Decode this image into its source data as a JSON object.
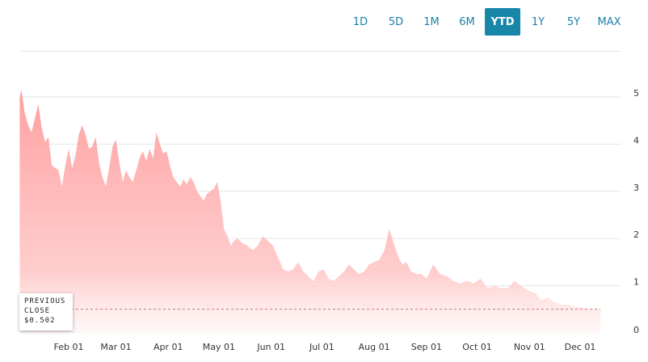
{
  "ranges": {
    "items": [
      {
        "label": "1D",
        "active": false
      },
      {
        "label": "5D",
        "active": false
      },
      {
        "label": "1M",
        "active": false
      },
      {
        "label": "6M",
        "active": false
      },
      {
        "label": "YTD",
        "active": true
      },
      {
        "label": "1Y",
        "active": false
      },
      {
        "label": "5Y",
        "active": false
      },
      {
        "label": "MAX",
        "active": false
      }
    ],
    "active_color": "#1786a9",
    "text_color": "#1a7fa8"
  },
  "previous_close": {
    "line1": "PREVIOUS",
    "line2": "CLOSE",
    "value_label": "$0.502",
    "value": 0.502
  },
  "chart_data": {
    "type": "area",
    "title": "",
    "xlabel": "",
    "ylabel": "",
    "ylim": [
      0,
      5.3
    ],
    "yticks": [
      0,
      1,
      2,
      3,
      4,
      5
    ],
    "xtick_labels": [
      "Feb 01",
      "Mar 01",
      "Apr 01",
      "May 01",
      "Jun 01",
      "Jul 01",
      "Aug 01",
      "Sep 01",
      "Oct 01",
      "Nov 01",
      "Dec 01"
    ],
    "xtick_dates": [
      "2022-02-01",
      "2022-03-01",
      "2022-04-01",
      "2022-05-01",
      "2022-06-01",
      "2022-07-01",
      "2022-08-01",
      "2022-09-01",
      "2022-10-01",
      "2022-11-01",
      "2022-12-01"
    ],
    "x_range": [
      "2022-01-03",
      "2022-12-13"
    ],
    "fill_color": "#ff9b9b",
    "grid": true,
    "series": [
      {
        "x": [
          "2022-01-03",
          "2022-01-04",
          "2022-01-06",
          "2022-01-08",
          "2022-01-10",
          "2022-01-12",
          "2022-01-14",
          "2022-01-16",
          "2022-01-18",
          "2022-01-20",
          "2022-01-22",
          "2022-01-24",
          "2022-01-26",
          "2022-01-28",
          "2022-01-30",
          "2022-02-01",
          "2022-02-03",
          "2022-02-05",
          "2022-02-07",
          "2022-02-09",
          "2022-02-11",
          "2022-02-13",
          "2022-02-15",
          "2022-02-17",
          "2022-02-19",
          "2022-02-21",
          "2022-02-23",
          "2022-02-25",
          "2022-02-27",
          "2022-03-01",
          "2022-03-03",
          "2022-03-05",
          "2022-03-07",
          "2022-03-09",
          "2022-03-11",
          "2022-03-13",
          "2022-03-15",
          "2022-03-17",
          "2022-03-19",
          "2022-03-21",
          "2022-03-23",
          "2022-03-25",
          "2022-03-27",
          "2022-03-29",
          "2022-03-31",
          "2022-04-02",
          "2022-04-04",
          "2022-04-06",
          "2022-04-08",
          "2022-04-10",
          "2022-04-12",
          "2022-04-14",
          "2022-04-16",
          "2022-04-18",
          "2022-04-20",
          "2022-04-22",
          "2022-04-24",
          "2022-04-26",
          "2022-04-28",
          "2022-04-30",
          "2022-05-02",
          "2022-05-04",
          "2022-05-06",
          "2022-05-08",
          "2022-05-10",
          "2022-05-12",
          "2022-05-15",
          "2022-05-18",
          "2022-05-21",
          "2022-05-24",
          "2022-05-27",
          "2022-05-30",
          "2022-06-02",
          "2022-06-05",
          "2022-06-08",
          "2022-06-11",
          "2022-06-14",
          "2022-06-17",
          "2022-06-20",
          "2022-06-23",
          "2022-06-26",
          "2022-06-29",
          "2022-07-02",
          "2022-07-05",
          "2022-07-08",
          "2022-07-11",
          "2022-07-14",
          "2022-07-17",
          "2022-07-20",
          "2022-07-23",
          "2022-07-26",
          "2022-07-29",
          "2022-08-01",
          "2022-08-04",
          "2022-08-07",
          "2022-08-10",
          "2022-08-13",
          "2022-08-16",
          "2022-08-18",
          "2022-08-20",
          "2022-08-23",
          "2022-08-26",
          "2022-08-29",
          "2022-09-01",
          "2022-09-05",
          "2022-09-09",
          "2022-09-13",
          "2022-09-17",
          "2022-09-21",
          "2022-09-25",
          "2022-09-29",
          "2022-10-03",
          "2022-10-07",
          "2022-10-11",
          "2022-10-15",
          "2022-10-19",
          "2022-10-23",
          "2022-10-27",
          "2022-10-31",
          "2022-11-04",
          "2022-11-08",
          "2022-11-12",
          "2022-11-16",
          "2022-11-20",
          "2022-11-24",
          "2022-11-28",
          "2022-12-02",
          "2022-12-06",
          "2022-12-10",
          "2022-12-13"
        ],
        "y": [
          5.0,
          5.15,
          4.65,
          4.4,
          4.25,
          4.55,
          4.85,
          4.35,
          4.05,
          4.15,
          3.55,
          3.5,
          3.45,
          3.1,
          3.55,
          3.9,
          3.5,
          3.75,
          4.2,
          4.4,
          4.2,
          3.9,
          3.95,
          4.15,
          3.6,
          3.3,
          3.1,
          3.5,
          3.95,
          4.1,
          3.6,
          3.2,
          3.45,
          3.3,
          3.2,
          3.45,
          3.7,
          3.85,
          3.65,
          3.9,
          3.7,
          4.25,
          4.0,
          3.8,
          3.85,
          3.55,
          3.3,
          3.2,
          3.1,
          3.25,
          3.15,
          3.3,
          3.2,
          3.0,
          2.9,
          2.8,
          2.95,
          3.0,
          3.05,
          3.2,
          2.8,
          2.2,
          2.05,
          1.85,
          1.95,
          2.0,
          1.9,
          1.85,
          1.75,
          1.85,
          2.05,
          1.95,
          1.85,
          1.6,
          1.35,
          1.3,
          1.35,
          1.5,
          1.3,
          1.2,
          1.1,
          1.3,
          1.35,
          1.15,
          1.1,
          1.2,
          1.3,
          1.45,
          1.35,
          1.25,
          1.3,
          1.45,
          1.5,
          1.55,
          1.75,
          2.2,
          1.85,
          1.55,
          1.45,
          1.5,
          1.3,
          1.25,
          1.25,
          1.15,
          1.45,
          1.25,
          1.2,
          1.1,
          1.05,
          1.1,
          1.05,
          1.15,
          0.95,
          1.0,
          0.95,
          0.95,
          1.1,
          1.0,
          0.9,
          0.85,
          0.7,
          0.75,
          0.65,
          0.6,
          0.6,
          0.55,
          0.55,
          0.5,
          0.5,
          0.5
        ]
      }
    ]
  }
}
